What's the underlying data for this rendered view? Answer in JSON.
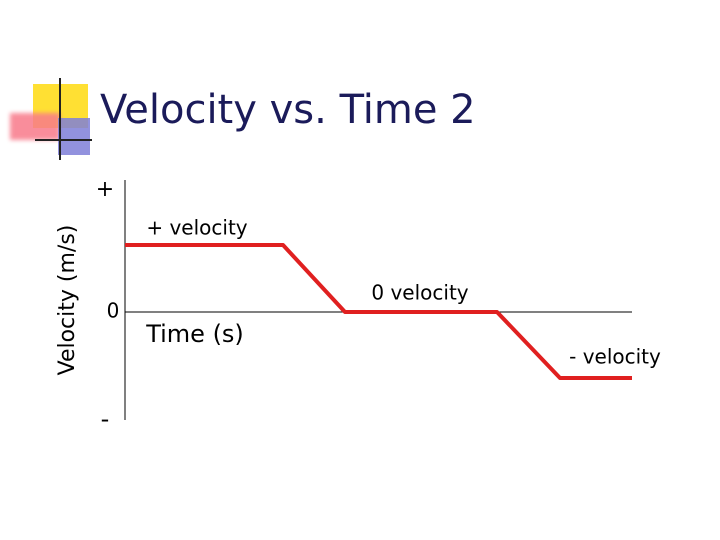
{
  "title": "Velocity vs. Time 2",
  "y_axis": {
    "label": "Velocity (m/s)",
    "top": "+",
    "middle": "0",
    "bottom": "-"
  },
  "x_axis": {
    "label": "Time (s)"
  },
  "annotations": [
    "+ velocity",
    "0 velocity",
    "- velocity"
  ]
}
